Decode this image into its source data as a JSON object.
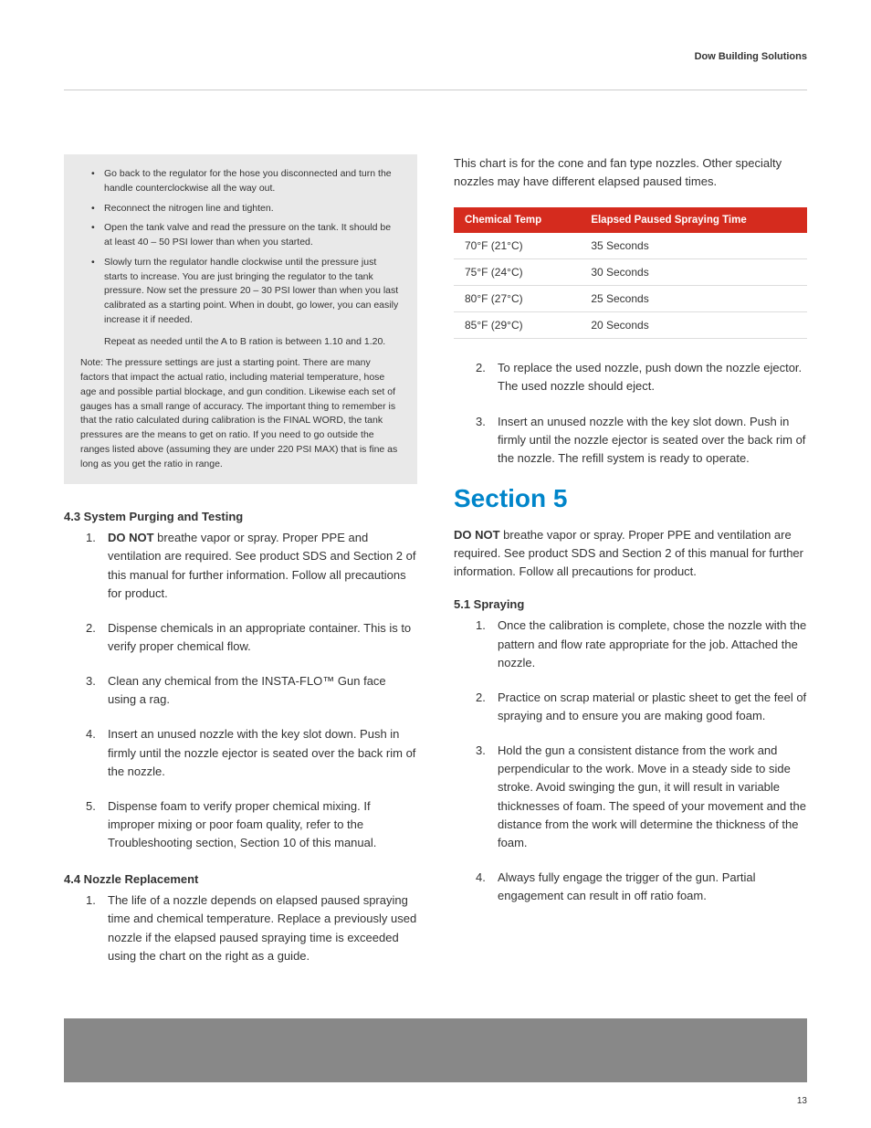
{
  "header": {
    "brand": "Dow Building Solutions"
  },
  "colors": {
    "section_title": "#0085ca",
    "table_header_bg": "#d52b1e",
    "table_header_text": "#ffffff",
    "gray_box_bg": "#e9e9e9",
    "footer_bar": "#888888",
    "hr": "#cccccc",
    "text": "#333333"
  },
  "typography": {
    "body_fontsize": 13,
    "small_fontsize": 10.5,
    "section_title_fontsize": 28,
    "subheading_fontsize": 13
  },
  "gray_box": {
    "bullets": [
      "Go back to the regulator for the hose you disconnected and turn the handle counterclockwise all the way out.",
      "Reconnect the nitrogen line and tighten.",
      "Open the tank valve and read the pressure on the tank. It should be at least 40 – 50 PSI lower than when you started.",
      "Slowly turn the regulator handle clockwise until the pressure just starts to increase. You are just bringing the regulator to the tank pressure. Now set the pressure 20 – 30 PSI lower than when you last calibrated as a starting point. When in doubt, go lower, you can easily increase it if needed."
    ],
    "repeat": "Repeat as needed until the A to B ration is between 1.10 and 1.20.",
    "note": "Note: The pressure settings are just a starting point. There are many factors that impact the actual ratio, including material temperature, hose age and possible partial blockage, and gun condition. Likewise each set of gauges has a small range of accuracy. The important thing to remember is that the ratio calculated during calibration is the FINAL WORD, the tank pressures are the means to get on ratio. If you need to go outside the ranges listed above (assuming they are under 220 PSI MAX) that is fine as long as you get the ratio in range."
  },
  "s4_3": {
    "heading": "4.3 System Purging and Testing",
    "items": [
      {
        "bold": "DO NOT",
        "rest": " breathe vapor or spray. Proper PPE and ventilation are required. See product SDS and Section 2 of this manual for further information. Follow all precautions for product."
      },
      {
        "text": "Dispense chemicals in an appropriate container. This is to verify proper chemical flow."
      },
      {
        "text": "Clean any chemical from the INSTA-FLO™ Gun face using a rag."
      },
      {
        "text": "Insert an unused nozzle with the key slot down. Push in firmly until the nozzle ejector is seated over the back rim of the nozzle."
      },
      {
        "text": "Dispense foam to verify proper chemical mixing. If improper mixing or poor foam quality, refer to the Troubleshooting section, Section 10 of this manual."
      }
    ]
  },
  "s4_4": {
    "heading": "4.4 Nozzle Replacement",
    "items": [
      {
        "text": "The life of a nozzle depends on elapsed paused spraying time and chemical temperature. Replace a previously used nozzle if the elapsed paused spraying time is exceeded using the chart on the right as a guide."
      }
    ],
    "continued": [
      {
        "text": "To replace the used nozzle, push down the nozzle ejector. The used nozzle should eject."
      },
      {
        "text": "Insert an unused nozzle with the key slot down. Push in firmly until the nozzle ejector is seated over the back rim of the nozzle. The refill system is ready to operate."
      }
    ]
  },
  "chart": {
    "intro": "This chart is for the cone and fan type nozzles. Other specialty nozzles may have different elapsed paused times.",
    "type": "table",
    "columns": [
      "Chemical Temp",
      "Elapsed Paused Spraying Time"
    ],
    "rows": [
      [
        "70°F (21°C)",
        "35 Seconds"
      ],
      [
        "75°F (24°C)",
        "30 Seconds"
      ],
      [
        "80°F (27°C)",
        "25 Seconds"
      ],
      [
        "85°F (29°C)",
        "20 Seconds"
      ]
    ]
  },
  "section5": {
    "title": "Section 5",
    "intro_bold": "DO NOT",
    "intro_rest": " breathe vapor or spray. Proper PPE and ventilation are required. See product SDS and Section 2 of this manual for further information. Follow all precautions for product."
  },
  "s5_1": {
    "heading": "5.1 Spraying",
    "items": [
      {
        "text": "Once the calibration is complete, chose the nozzle with the pattern and flow rate appropriate for the job. Attached the nozzle."
      },
      {
        "text": "Practice on scrap material or plastic sheet to get the feel of spraying and to ensure you are making good foam."
      },
      {
        "text": "Hold the gun a consistent distance from the work and perpendicular to the work. Move in a steady side to side stroke. Avoid swinging the gun, it will result in variable thicknesses of foam. The speed of your movement and the distance from the work will determine the thickness of the foam."
      },
      {
        "text": "Always fully engage the trigger of the gun. Partial engagement can result in off ratio foam."
      }
    ]
  },
  "page_number": "13"
}
